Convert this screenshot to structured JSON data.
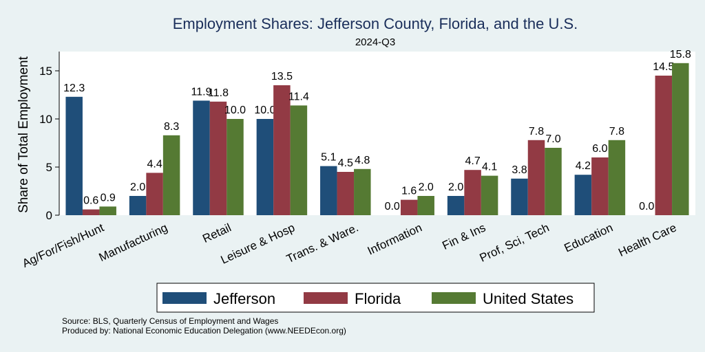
{
  "chart_data": {
    "type": "bar",
    "title": "Employment Shares: Jefferson County, Florida, and the U.S.",
    "subtitle": "2024-Q3",
    "xlabel": "",
    "ylabel": "Share of Total Employment",
    "ylim": [
      0,
      17
    ],
    "yticks": [
      0,
      5,
      10,
      15
    ],
    "grid": false,
    "legend_position": "bottom",
    "categories": [
      "Ag/For/Fish/Hunt",
      "Manufacturing",
      "Retail",
      "Leisure & Hosp",
      "Trans. & Ware.",
      "Information",
      "Fin & Ins",
      "Prof, Sci, Tech",
      "Education",
      "Health Care"
    ],
    "series": [
      {
        "name": "Jefferson",
        "color": "#1f4e79",
        "values": [
          12.3,
          2.0,
          11.9,
          10.0,
          5.1,
          0.0,
          2.0,
          3.8,
          4.2,
          0.0
        ]
      },
      {
        "name": "Florida",
        "color": "#923a44",
        "values": [
          0.6,
          4.4,
          11.8,
          13.5,
          4.5,
          1.6,
          4.7,
          7.8,
          6.0,
          14.5
        ]
      },
      {
        "name": "United States",
        "color": "#557a33",
        "values": [
          0.9,
          8.3,
          10.0,
          11.4,
          4.8,
          2.0,
          4.1,
          7.0,
          7.8,
          15.8
        ]
      }
    ]
  },
  "footer": {
    "source": "Source: BLS, Quarterly Census of Employment and Wages",
    "produced_by": "Produced by: National Economic Education Delegation (www.NEEDEcon.org)"
  }
}
